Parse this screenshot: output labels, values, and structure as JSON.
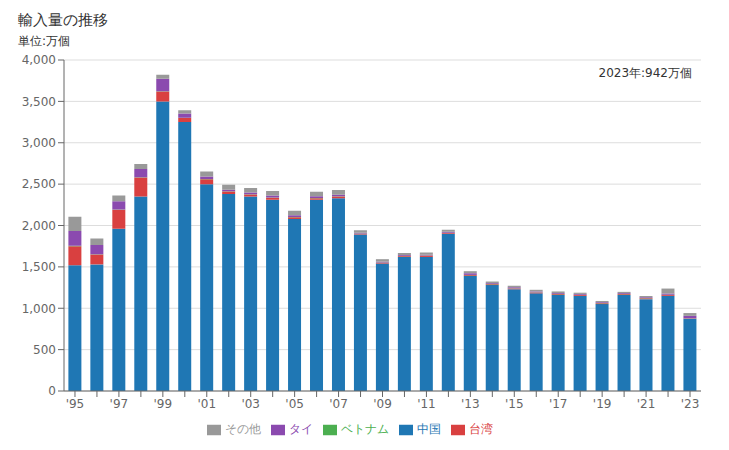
{
  "chart_data": {
    "type": "bar",
    "title": "輸入量の推移",
    "ylabel": "単位:万個",
    "annotation": "2023年:942万個",
    "categories": [
      "'95",
      null,
      "'97",
      null,
      "'99",
      null,
      "'01",
      null,
      "'03",
      null,
      "'05",
      null,
      "'07",
      null,
      "'09",
      null,
      "'11",
      null,
      "'13",
      null,
      "'15",
      null,
      "'17",
      null,
      "'19",
      null,
      "'21",
      null,
      "'23"
    ],
    "series": [
      {
        "name": "中国",
        "color": "#1F77B4",
        "values": [
          1520,
          1530,
          1960,
          2350,
          3500,
          3250,
          2500,
          2380,
          2350,
          2310,
          2080,
          2310,
          2330,
          1890,
          1540,
          1620,
          1620,
          1900,
          1390,
          1280,
          1230,
          1180,
          1160,
          1150,
          1050,
          1160,
          1110,
          1150,
          870
        ]
      },
      {
        "name": "台湾",
        "color": "#D94040",
        "values": [
          230,
          120,
          230,
          230,
          120,
          50,
          60,
          30,
          25,
          25,
          20,
          20,
          20,
          10,
          10,
          10,
          15,
          10,
          10,
          10,
          10,
          10,
          10,
          10,
          10,
          10,
          10,
          10,
          5
        ]
      },
      {
        "name": "ベトナム",
        "color": "#4CAF50",
        "values": [
          5,
          3,
          3,
          3,
          3,
          3,
          3,
          3,
          3,
          3,
          3,
          3,
          3,
          3,
          3,
          3,
          3,
          3,
          3,
          3,
          3,
          3,
          3,
          3,
          3,
          3,
          3,
          3,
          3
        ]
      },
      {
        "name": "タイ",
        "color": "#8B4AAF",
        "values": [
          180,
          110,
          100,
          100,
          150,
          50,
          30,
          20,
          20,
          25,
          20,
          20,
          20,
          10,
          10,
          10,
          10,
          10,
          20,
          10,
          10,
          10,
          10,
          10,
          10,
          10,
          10,
          15,
          30
        ]
      },
      {
        "name": "その他",
        "color": "#999999",
        "values": [
          170,
          80,
          70,
          60,
          50,
          40,
          60,
          60,
          55,
          55,
          55,
          55,
          55,
          30,
          30,
          25,
          25,
          25,
          25,
          20,
          20,
          20,
          20,
          15,
          15,
          15,
          15,
          60,
          34
        ]
      }
    ],
    "stacked": true,
    "ylim": [
      0,
      4000
    ],
    "yticks": [
      0,
      500,
      {
        "value": 1000,
        "label": "1,000"
      },
      {
        "value": 1500,
        "label": "1,500"
      },
      {
        "value": 2000,
        "label": "2,000"
      },
      {
        "value": 2500,
        "label": "2,500"
      },
      {
        "value": 3000,
        "label": "3,000"
      },
      {
        "value": 3500,
        "label": "3,500"
      },
      {
        "value": 4000,
        "label": "4,000"
      }
    ],
    "grid": true,
    "legend": "bottom"
  }
}
